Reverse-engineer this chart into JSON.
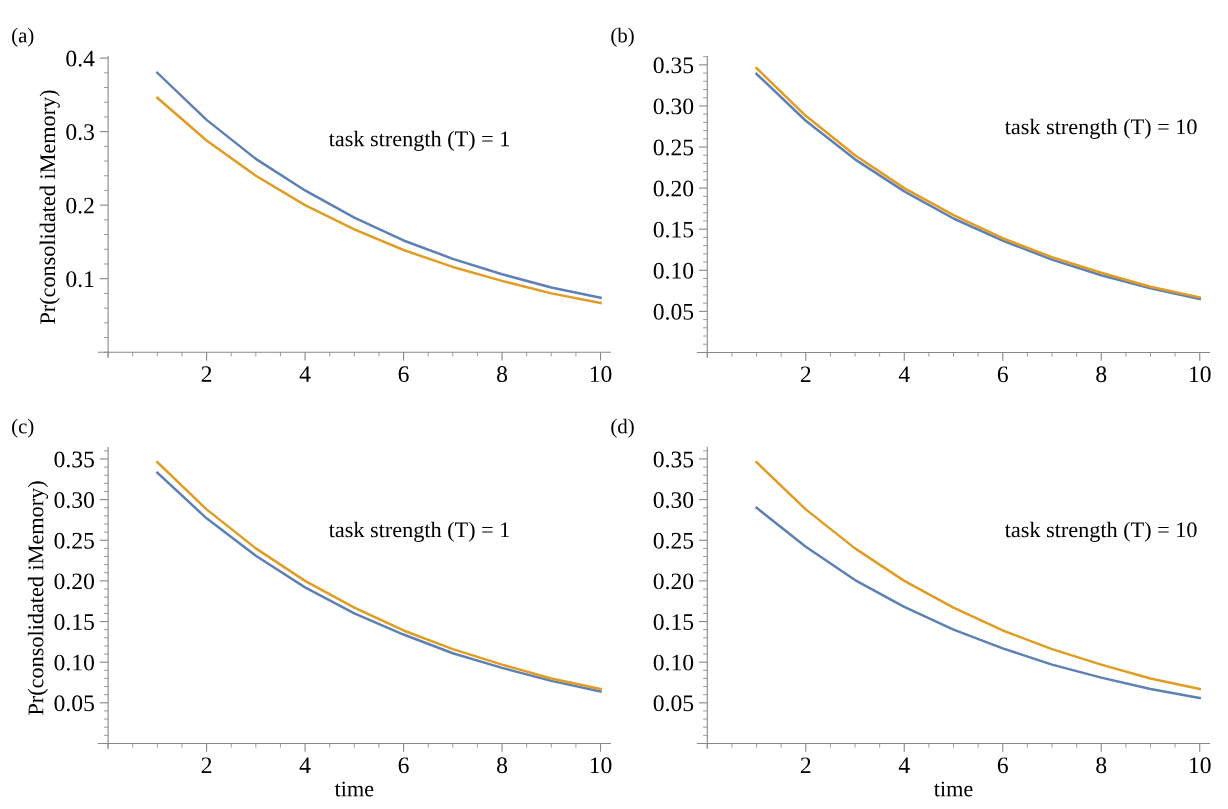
{
  "chart_data": [
    {
      "type": "line",
      "title": "(a)",
      "ylabel": "Pr(consolidated iMemory)",
      "annotations": [
        "task strength (T) = 1"
      ],
      "x": [
        1,
        2,
        3,
        4,
        5,
        6,
        7,
        8,
        9,
        10
      ],
      "xlim": [
        -0.2,
        10.2
      ],
      "xticks": [
        2,
        4,
        6,
        8,
        10
      ],
      "ylim": [
        -0.007,
        0.402
      ],
      "yticks": [
        0.1,
        0.2,
        0.3,
        0.4
      ],
      "series": [
        {
          "color": "#5e81b5",
          "values": [
            0.38,
            0.316,
            0.263,
            0.22,
            0.183,
            0.152,
            0.127,
            0.106,
            0.088,
            0.074
          ]
        },
        {
          "color": "#e19c24",
          "values": [
            0.346,
            0.288,
            0.24,
            0.2,
            0.167,
            0.139,
            0.116,
            0.097,
            0.08,
            0.067
          ]
        }
      ]
    },
    {
      "type": "line",
      "title": "(b)",
      "annotations": [
        "task strength (T) = 10"
      ],
      "x": [
        1,
        2,
        3,
        4,
        5,
        6,
        7,
        8,
        9,
        10
      ],
      "xlim": [
        -0.2,
        10.2
      ],
      "xticks": [
        2,
        4,
        6,
        8,
        10
      ],
      "ylim": [
        -0.006,
        0.36
      ],
      "yticks": [
        {
          "value": 0.05,
          "label": "0.05"
        },
        {
          "value": 0.1,
          "label": "0.10"
        },
        {
          "value": 0.15,
          "label": "0.15"
        },
        {
          "value": 0.2,
          "label": "0.20"
        },
        {
          "value": 0.25,
          "label": "0.25"
        },
        {
          "value": 0.3,
          "label": "0.30"
        },
        {
          "value": 0.35,
          "label": "0.35"
        }
      ],
      "series": [
        {
          "color": "#5e81b5",
          "values": [
            0.339,
            0.282,
            0.235,
            0.196,
            0.163,
            0.136,
            0.113,
            0.094,
            0.078,
            0.065
          ]
        },
        {
          "color": "#e19c24",
          "values": [
            0.346,
            0.288,
            0.24,
            0.2,
            0.167,
            0.139,
            0.116,
            0.097,
            0.08,
            0.067
          ]
        }
      ]
    },
    {
      "type": "line",
      "title": "(c)",
      "xlabel": "time",
      "ylabel": "Pr(consolidated iMemory)",
      "annotations": [
        "task strength (T) = 1"
      ],
      "x": [
        1,
        2,
        3,
        4,
        5,
        6,
        7,
        8,
        9,
        10
      ],
      "xlim": [
        -0.2,
        10.2
      ],
      "xticks": [
        2,
        4,
        6,
        8,
        10
      ],
      "ylim": [
        -0.006,
        0.364
      ],
      "yticks": [
        {
          "value": 0.05,
          "label": "0.05"
        },
        {
          "value": 0.1,
          "label": "0.10"
        },
        {
          "value": 0.15,
          "label": "0.15"
        },
        {
          "value": 0.2,
          "label": "0.20"
        },
        {
          "value": 0.25,
          "label": "0.25"
        },
        {
          "value": 0.3,
          "label": "0.30"
        },
        {
          "value": 0.35,
          "label": "0.35"
        }
      ],
      "series": [
        {
          "color": "#5e81b5",
          "values": [
            0.333,
            0.277,
            0.231,
            0.192,
            0.16,
            0.134,
            0.111,
            0.093,
            0.077,
            0.064
          ]
        },
        {
          "color": "#e19c24",
          "values": [
            0.346,
            0.288,
            0.24,
            0.2,
            0.167,
            0.139,
            0.116,
            0.097,
            0.08,
            0.067
          ]
        }
      ]
    },
    {
      "type": "line",
      "title": "(d)",
      "xlabel": "time",
      "annotations": [
        "task strength (T) = 10"
      ],
      "x": [
        1,
        2,
        3,
        4,
        5,
        6,
        7,
        8,
        9,
        10
      ],
      "xlim": [
        -0.2,
        10.2
      ],
      "xticks": [
        2,
        4,
        6,
        8,
        10
      ],
      "ylim": [
        -0.006,
        0.364
      ],
      "yticks": [
        {
          "value": 0.05,
          "label": "0.05"
        },
        {
          "value": 0.1,
          "label": "0.10"
        },
        {
          "value": 0.15,
          "label": "0.15"
        },
        {
          "value": 0.2,
          "label": "0.20"
        },
        {
          "value": 0.25,
          "label": "0.25"
        },
        {
          "value": 0.3,
          "label": "0.30"
        },
        {
          "value": 0.35,
          "label": "0.35"
        }
      ],
      "series": [
        {
          "color": "#5e81b5",
          "values": [
            0.29,
            0.242,
            0.201,
            0.168,
            0.14,
            0.117,
            0.097,
            0.081,
            0.067,
            0.056
          ]
        },
        {
          "color": "#e19c24",
          "values": [
            0.346,
            0.288,
            0.24,
            0.2,
            0.167,
            0.139,
            0.116,
            0.097,
            0.08,
            0.067
          ]
        }
      ]
    }
  ]
}
